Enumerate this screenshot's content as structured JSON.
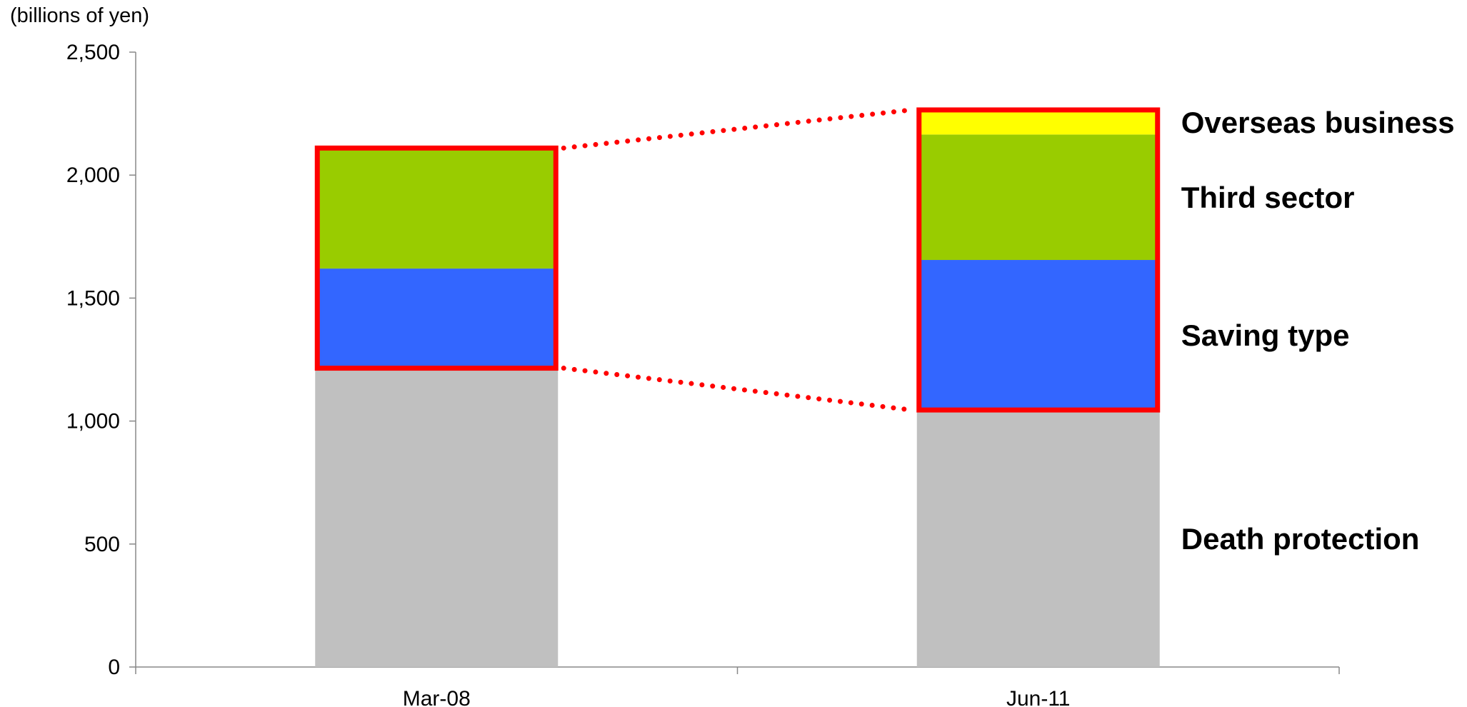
{
  "chart_data": {
    "type": "bar",
    "stacked": true,
    "unit_label": "(billions of yen)",
    "categories": [
      "Mar-08",
      "Jun-11"
    ],
    "series": [
      {
        "name": "Death protection",
        "values": [
          1215,
          1045
        ],
        "color": "#C0C0C0"
      },
      {
        "name": "Saving type",
        "values": [
          405,
          610
        ],
        "color": "#3366FF"
      },
      {
        "name": "Third sector",
        "values": [
          490,
          510
        ],
        "color": "#99CC00"
      },
      {
        "name": "Overseas business",
        "values": [
          0,
          100
        ],
        "color": "#FFFF00"
      }
    ],
    "ylim": [
      0,
      2500
    ],
    "yticks": [
      0,
      500,
      1000,
      1500,
      2000,
      2500
    ],
    "ytick_labels": [
      "0",
      "500",
      "1,000",
      "1,500",
      "2,000",
      "2,500"
    ],
    "highlight": {
      "from_series": 1,
      "color": "#FF0000",
      "connector": "dotted"
    },
    "grid": false,
    "legend": "right, inline labels"
  }
}
